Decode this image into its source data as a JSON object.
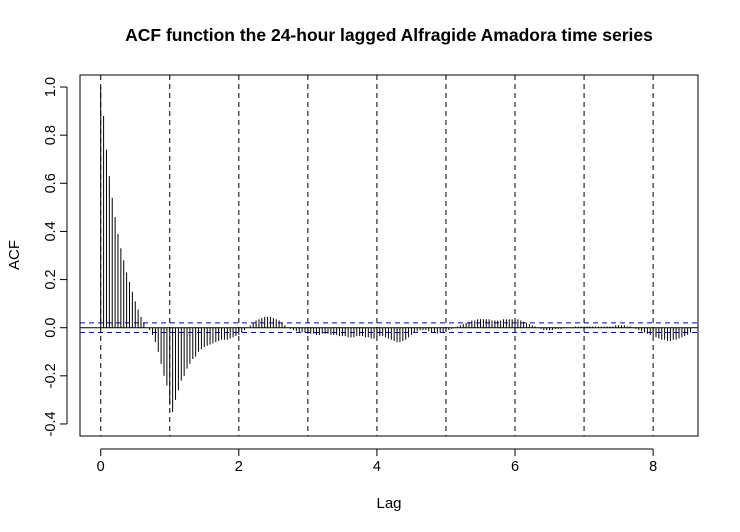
{
  "chart_data": {
    "type": "bar",
    "title": "ACF function the 24-hour lagged Alfragide Amadora time series",
    "xlabel": "Lag",
    "ylabel": "ACF",
    "xlim": [
      -0.3,
      8.65
    ],
    "ylim": [
      -0.45,
      1.05
    ],
    "x_ticks": [
      0,
      2,
      4,
      6,
      8
    ],
    "x_tick_labels": [
      "0",
      "2",
      "4",
      "6",
      "8"
    ],
    "y_ticks": [
      -0.4,
      -0.2,
      0.0,
      0.2,
      0.4,
      0.6,
      0.8,
      1.0
    ],
    "y_tick_labels": [
      "-0.4",
      "-0.2",
      "0.0",
      "0.2",
      "0.4",
      "0.6",
      "0.8",
      "1.0"
    ],
    "confidence_bounds": [
      0.02,
      -0.02
    ],
    "confidence_color": "#0000cc",
    "vertical_reference_lines": [
      0,
      1,
      2,
      3,
      4,
      5,
      6,
      7,
      8
    ],
    "lag_step": 0.041667,
    "acf_values": [
      1.0,
      0.88,
      0.74,
      0.63,
      0.54,
      0.46,
      0.39,
      0.33,
      0.28,
      0.23,
      0.19,
      0.15,
      0.11,
      0.075,
      0.045,
      0.02,
      0.0,
      -0.01,
      -0.03,
      -0.06,
      -0.1,
      -0.15,
      -0.2,
      -0.24,
      -0.32,
      -0.35,
      -0.3,
      -0.26,
      -0.22,
      -0.2,
      -0.17,
      -0.15,
      -0.13,
      -0.12,
      -0.1,
      -0.09,
      -0.08,
      -0.075,
      -0.07,
      -0.065,
      -0.06,
      -0.055,
      -0.05,
      -0.05,
      -0.05,
      -0.045,
      -0.04,
      -0.035,
      -0.03,
      -0.02,
      -0.01,
      0.0,
      0.01,
      0.02,
      0.03,
      0.035,
      0.04,
      0.045,
      0.045,
      0.045,
      0.04,
      0.035,
      0.03,
      0.02,
      0.01,
      0.0,
      -0.005,
      -0.01,
      -0.015,
      -0.02,
      -0.02,
      -0.02,
      -0.025,
      -0.025,
      -0.025,
      -0.03,
      -0.03,
      -0.025,
      -0.025,
      -0.025,
      -0.03,
      -0.03,
      -0.03,
      -0.035,
      -0.035,
      -0.035,
      -0.04,
      -0.04,
      -0.04,
      -0.035,
      -0.035,
      -0.035,
      -0.04,
      -0.04,
      -0.045,
      -0.045,
      -0.04,
      -0.035,
      -0.035,
      -0.04,
      -0.045,
      -0.05,
      -0.055,
      -0.06,
      -0.06,
      -0.055,
      -0.05,
      -0.04,
      -0.03,
      -0.02,
      -0.015,
      -0.01,
      -0.01,
      -0.01,
      -0.015,
      -0.02,
      -0.02,
      -0.025,
      -0.02,
      -0.02,
      -0.015,
      -0.01,
      -0.005,
      0.0,
      0.005,
      0.01,
      0.015,
      0.02,
      0.025,
      0.03,
      0.03,
      0.035,
      0.035,
      0.035,
      0.035,
      0.035,
      0.03,
      0.03,
      0.03,
      0.03,
      0.035,
      0.035,
      0.035,
      0.035,
      0.035,
      0.035,
      0.03,
      0.025,
      0.02,
      0.015,
      0.01,
      0.005,
      0.0,
      -0.005,
      -0.01,
      -0.01,
      -0.01,
      -0.01,
      -0.005,
      -0.005,
      -0.005,
      0.0,
      0.0,
      0.0,
      0.0,
      0.005,
      0.005,
      0.005,
      0.005,
      0.005,
      0.005,
      0.005,
      0.005,
      0.005,
      0.005,
      0.005,
      0.005,
      0.005,
      0.005,
      0.01,
      0.01,
      0.01,
      0.01,
      0.005,
      0.005,
      0.0,
      -0.005,
      -0.01,
      -0.015,
      -0.02,
      -0.025,
      -0.03,
      -0.035,
      -0.04,
      -0.045,
      -0.05,
      -0.05,
      -0.055,
      -0.055,
      -0.05,
      -0.05,
      -0.045,
      -0.04,
      -0.035,
      -0.03,
      -0.02
    ]
  }
}
